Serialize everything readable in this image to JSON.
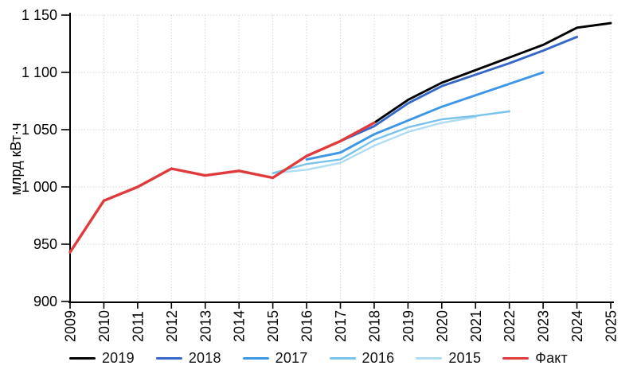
{
  "chart_data": {
    "type": "line",
    "title": "",
    "ylabel": "млрд кВт·ч",
    "xlabel": "",
    "x_ticks": [
      "2009",
      "2010",
      "2011",
      "2012",
      "2013",
      "2014",
      "2015",
      "2016",
      "2017",
      "2018",
      "2019",
      "2020",
      "2021",
      "2022",
      "2023",
      "2024",
      "2025"
    ],
    "y_ticks": [
      "900",
      "950",
      "1 000",
      "1 050",
      "1 100",
      "1 150"
    ],
    "xlim": [
      2009,
      2025
    ],
    "ylim": [
      900,
      1150
    ],
    "grid": "dotted",
    "grid_color": "#c9c9c9",
    "legend_position": "bottom",
    "draw_order": [
      "2015",
      "2016",
      "2017",
      "2018",
      "2019",
      "Факт"
    ],
    "series": [
      {
        "name": "2019",
        "color": "#000000",
        "start_year": 2018,
        "values": [
          1056,
          1076,
          1091,
          1102,
          1113,
          1124,
          1139,
          1143
        ]
      },
      {
        "name": "2018",
        "color": "#3767c9",
        "start_year": 2017,
        "values": [
          1040,
          1053,
          1073,
          1088,
          1098,
          1108,
          1119,
          1131
        ]
      },
      {
        "name": "2017",
        "color": "#3d97e6",
        "start_year": 2016,
        "values": [
          1024,
          1030,
          1046,
          1058,
          1070,
          1080,
          1090,
          1100
        ]
      },
      {
        "name": "2016",
        "color": "#79c2ec",
        "start_year": 2015,
        "values": [
          1012,
          1020,
          1024,
          1041,
          1052,
          1059,
          1062,
          1066
        ]
      },
      {
        "name": "2015",
        "color": "#afdcf2",
        "start_year": 2015,
        "values": [
          1012,
          1015,
          1021,
          1036,
          1048,
          1056,
          1061
        ]
      },
      {
        "name": "Факт",
        "color": "#e03b3c",
        "start_year": 2009,
        "values": [
          943,
          988,
          1000,
          1016,
          1010,
          1014,
          1008,
          1027,
          1040,
          1056
        ]
      }
    ]
  }
}
